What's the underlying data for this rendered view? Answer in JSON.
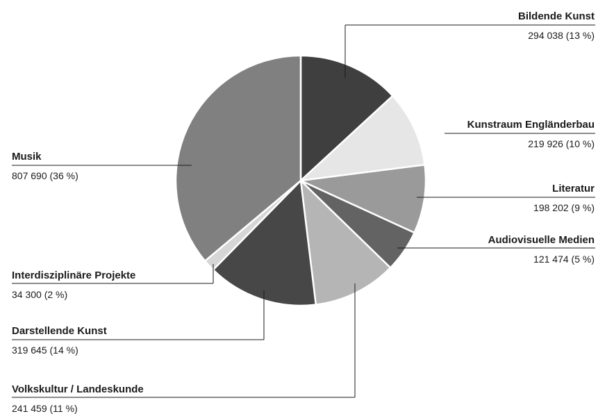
{
  "chart_data": {
    "type": "pie",
    "title": "",
    "legend": "none",
    "slices": [
      {
        "label": "Bildende Kunst",
        "value": 294038,
        "value_text": "294 038 (13 %)",
        "color": "#3f3f3f"
      },
      {
        "label": "Kunstraum Engländerbau",
        "value": 219926,
        "value_text": "219 926 (10 %)",
        "color": "#e6e6e6"
      },
      {
        "label": "Literatur",
        "value": 198202,
        "value_text": "198 202 (9 %)",
        "color": "#9a9a9a"
      },
      {
        "label": "Audiovisuelle Medien",
        "value": 121474,
        "value_text": "121 474 (5 %)",
        "color": "#636363"
      },
      {
        "label": "Volkskultur / Landeskunde",
        "value": 241459,
        "value_text": "241 459 (11 %)",
        "color": "#b5b5b5"
      },
      {
        "label": "Darstellende Kunst",
        "value": 319645,
        "value_text": "319 645 (14 %)",
        "color": "#474747"
      },
      {
        "label": "Interdisziplinäre Projekte",
        "value": 34300,
        "value_text": "34 300 (2 %)",
        "color": "#d6d6d6"
      },
      {
        "label": "Musik",
        "value": 807690,
        "value_text": "807 690 (36 %)",
        "color": "#808080"
      }
    ]
  }
}
